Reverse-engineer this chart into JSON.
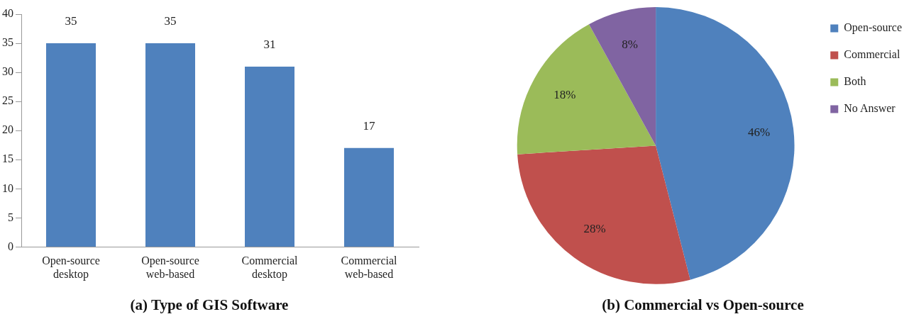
{
  "chart_data": [
    {
      "type": "bar",
      "title": "(a) Type of GIS Software",
      "categories": [
        "Open-source desktop",
        "Open-source web-based",
        "Commercial desktop",
        "Commercial web-based"
      ],
      "values": [
        35,
        35,
        31,
        17
      ],
      "color": "#4f81bd",
      "ylim": [
        0,
        40
      ],
      "yticks": [
        0,
        5,
        10,
        15,
        20,
        25,
        30,
        35,
        40
      ],
      "data_labels": true,
      "grid": false,
      "legend": false
    },
    {
      "type": "pie",
      "title": "(b) Commercial vs Open-source",
      "categories": [
        "Open-source",
        "Commercial",
        "Both",
        "No Answer"
      ],
      "values": [
        46,
        28,
        18,
        8
      ],
      "colors": [
        "#4f81bd",
        "#c0504d",
        "#9bbb59",
        "#8064a2"
      ],
      "value_labels": [
        "46%",
        "28%",
        "18%",
        "8%"
      ],
      "legend": "right"
    }
  ]
}
